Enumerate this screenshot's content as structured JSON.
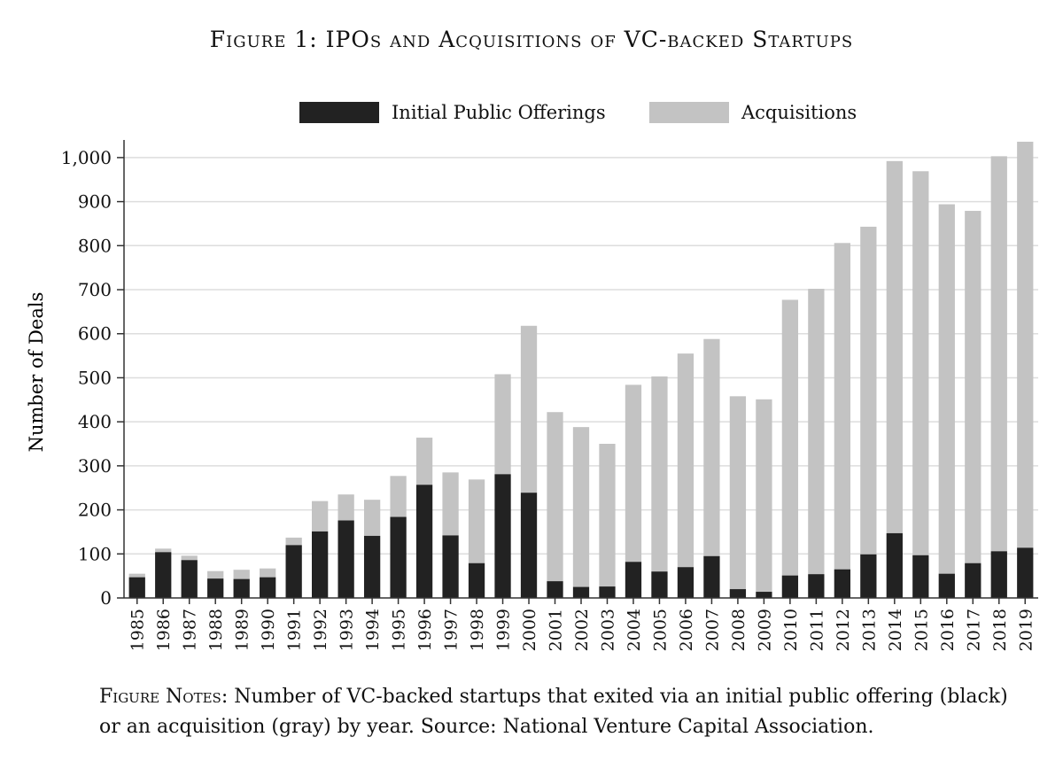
{
  "title": "Figure 1: IPOs and Acquisitions of VC-backed Startups",
  "notes": {
    "label": "Figure Notes:",
    "text": "Number of VC-backed startups that exited via an initial public offering (black) or an acquisition (gray) by year. Source: National Venture Capital Association."
  },
  "colors": {
    "ipo": "#222222",
    "acq": "#c3c3c3",
    "grid": "#dddddd",
    "axis": "#333333"
  },
  "chart_data": {
    "type": "bar",
    "stacked": true,
    "title": "Figure 1: IPOs and Acquisitions of VC-backed Startups",
    "xlabel": "",
    "ylabel": "Number of Deals",
    "ylim": [
      0,
      1040
    ],
    "yticks": [
      0,
      100,
      200,
      300,
      400,
      500,
      600,
      700,
      800,
      900,
      1000
    ],
    "ytick_labels": [
      "0",
      "100",
      "200",
      "300",
      "400",
      "500",
      "600",
      "700",
      "800",
      "900",
      "1,000"
    ],
    "grid": true,
    "legend": "top",
    "categories": [
      "1985",
      "1986",
      "1987",
      "1988",
      "1989",
      "1990",
      "1991",
      "1992",
      "1993",
      "1994",
      "1995",
      "1996",
      "1997",
      "1998",
      "1999",
      "2000",
      "2001",
      "2002",
      "2003",
      "2004",
      "2005",
      "2006",
      "2007",
      "2008",
      "2009",
      "2010",
      "2011",
      "2012",
      "2013",
      "2014",
      "2015",
      "2016",
      "2017",
      "2018",
      "2019"
    ],
    "series": [
      {
        "name": "Initial Public Offerings",
        "values": [
          47,
          104,
          86,
          44,
          43,
          47,
          120,
          151,
          176,
          141,
          184,
          257,
          142,
          79,
          281,
          239,
          38,
          25,
          26,
          82,
          60,
          70,
          95,
          20,
          14,
          51,
          54,
          65,
          99,
          147,
          97,
          55,
          79,
          106,
          114
        ]
      },
      {
        "name": "Acquisitions",
        "values": [
          8,
          8,
          10,
          17,
          21,
          20,
          17,
          69,
          59,
          82,
          93,
          107,
          143,
          190,
          227,
          379,
          384,
          363,
          324,
          402,
          443,
          485,
          493,
          438,
          437,
          626,
          648,
          741,
          744,
          845,
          872,
          839,
          800,
          897,
          922
        ]
      }
    ]
  }
}
